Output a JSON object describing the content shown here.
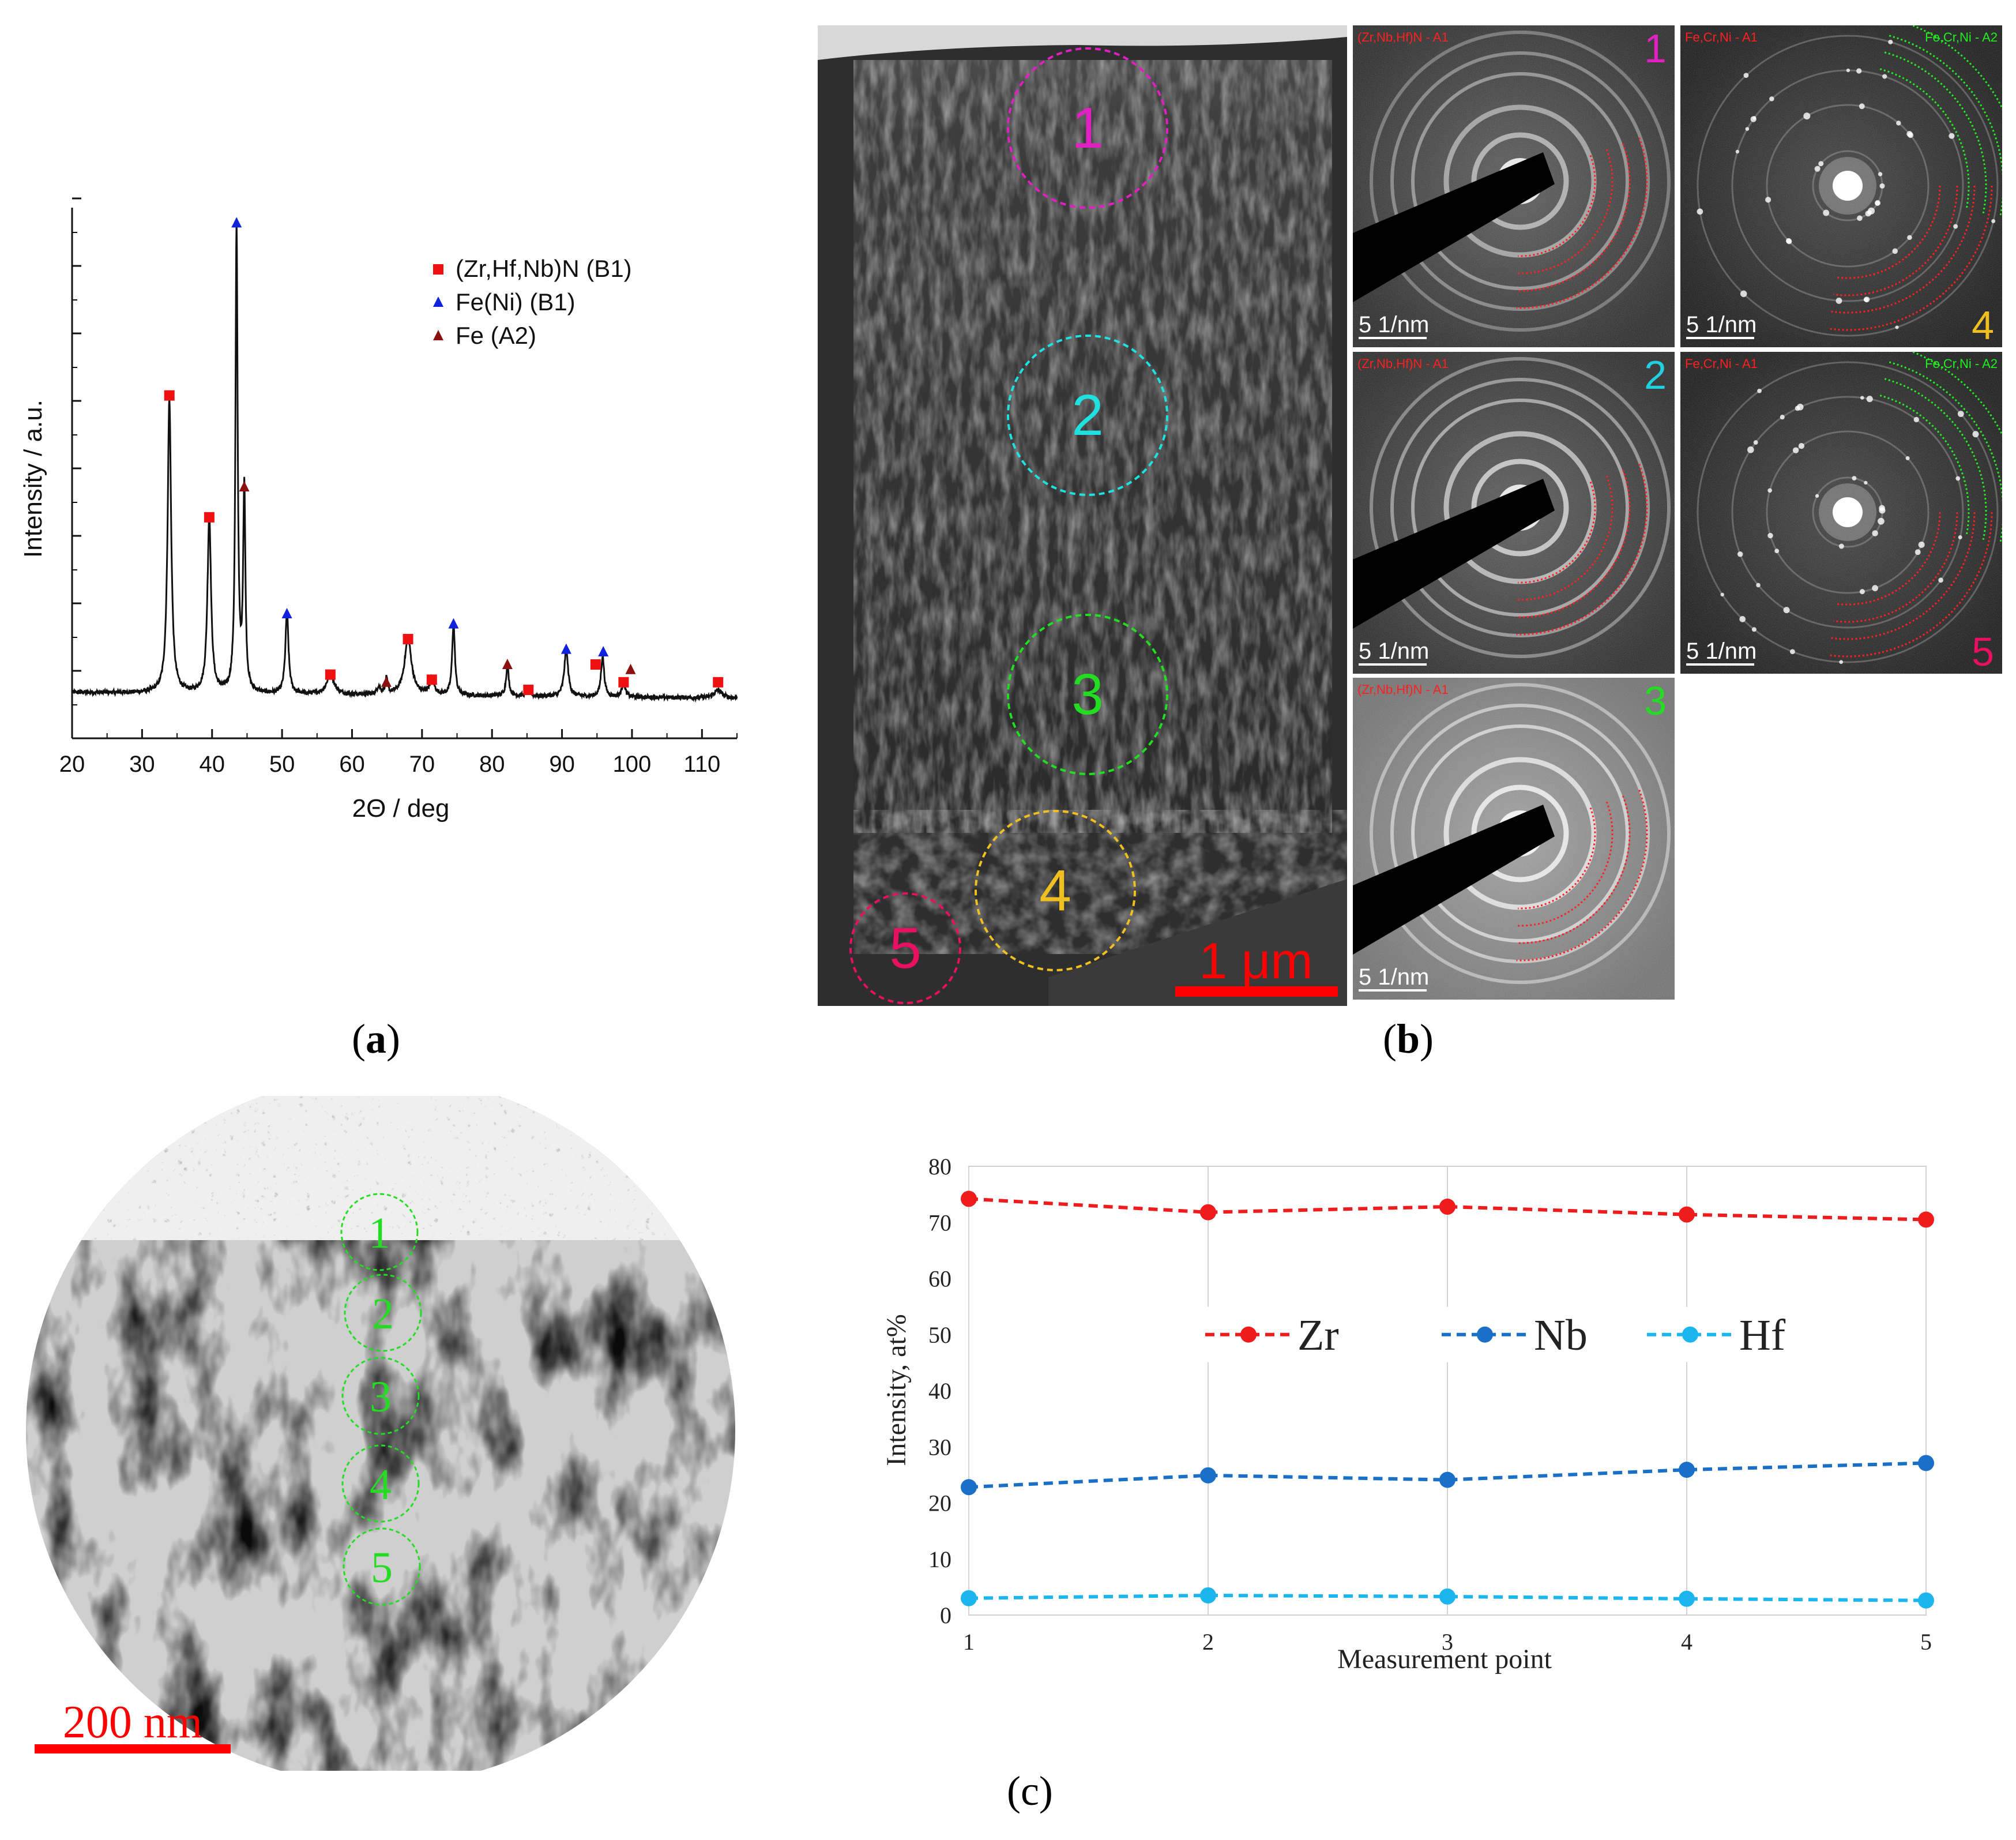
{
  "panel_a": {
    "caption": "a",
    "chart_data": {
      "type": "line",
      "xlabel": "2Θ / deg",
      "ylabel": "Intensity / a.u.",
      "xlim": [
        20,
        115
      ],
      "x_ticks": [
        "20",
        "30",
        "40",
        "50",
        "60",
        "70",
        "80",
        "90",
        "100",
        "110"
      ],
      "y_tick_labels": "none",
      "legend": [
        {
          "label": "(Zr,Hf,Nb)N (B1)",
          "marker": "square",
          "color": "#ee1111"
        },
        {
          "label": "Fe(Ni) (B1)",
          "marker": "triangle",
          "color": "#1122dd"
        },
        {
          "label": "Fe (A2)",
          "marker": "triangle",
          "color": "#8b1010"
        }
      ],
      "legend_position": "top-right",
      "peaks": [
        {
          "x": 33.9,
          "h": 0.58,
          "w": 0.45
        },
        {
          "x": 39.6,
          "h": 0.35,
          "w": 0.45
        },
        {
          "x": 43.5,
          "h": 0.92,
          "w": 0.28
        },
        {
          "x": 44.6,
          "h": 0.4,
          "w": 0.28
        },
        {
          "x": 50.7,
          "h": 0.16,
          "w": 0.4
        },
        {
          "x": 56.9,
          "h": 0.04,
          "w": 0.9
        },
        {
          "x": 63.8,
          "h": 0.015,
          "w": 0.4
        },
        {
          "x": 64.9,
          "h": 0.03,
          "w": 0.3
        },
        {
          "x": 68.0,
          "h": 0.11,
          "w": 0.9
        },
        {
          "x": 71.4,
          "h": 0.03,
          "w": 0.6
        },
        {
          "x": 74.5,
          "h": 0.14,
          "w": 0.35
        },
        {
          "x": 82.2,
          "h": 0.06,
          "w": 0.35
        },
        {
          "x": 85.2,
          "h": 0.012,
          "w": 0.5
        },
        {
          "x": 90.6,
          "h": 0.09,
          "w": 0.5
        },
        {
          "x": 95.8,
          "h": 0.08,
          "w": 0.4
        },
        {
          "x": 98.8,
          "h": 0.03,
          "w": 0.4
        },
        {
          "x": 112.3,
          "h": 0.015,
          "w": 1.0
        }
      ],
      "markers": [
        {
          "x": 33.9,
          "y": 0.63,
          "phase": "zr"
        },
        {
          "x": 39.6,
          "y": 0.39,
          "phase": "zr"
        },
        {
          "x": 43.5,
          "y": 0.97,
          "phase": "feni"
        },
        {
          "x": 44.6,
          "y": 0.45,
          "phase": "fe"
        },
        {
          "x": 50.7,
          "y": 0.2,
          "phase": "feni"
        },
        {
          "x": 56.9,
          "y": 0.08,
          "phase": "zr"
        },
        {
          "x": 64.9,
          "y": 0.065,
          "phase": "fe"
        },
        {
          "x": 68.0,
          "y": 0.15,
          "phase": "zr"
        },
        {
          "x": 71.4,
          "y": 0.07,
          "phase": "zr"
        },
        {
          "x": 74.5,
          "y": 0.18,
          "phase": "feni"
        },
        {
          "x": 82.2,
          "y": 0.1,
          "phase": "fe"
        },
        {
          "x": 85.2,
          "y": 0.05,
          "phase": "zr"
        },
        {
          "x": 90.6,
          "y": 0.13,
          "phase": "feni"
        },
        {
          "x": 94.8,
          "y": 0.1,
          "phase": "zr"
        },
        {
          "x": 95.9,
          "y": 0.125,
          "phase": "feni"
        },
        {
          "x": 98.8,
          "y": 0.065,
          "phase": "zr"
        },
        {
          "x": 99.8,
          "y": 0.09,
          "phase": "fe"
        },
        {
          "x": 112.3,
          "y": 0.065,
          "phase": "zr"
        }
      ]
    }
  },
  "panel_b": {
    "caption": "b",
    "tem_regions": [
      "1",
      "2",
      "3",
      "4",
      "5"
    ],
    "region_colors": [
      "#e020c0",
      "#20e0e0",
      "#22dd22",
      "#f0c020",
      "#e81060"
    ],
    "scale_bar": "1 μm",
    "saed_patterns": [
      {
        "number": "1",
        "phase_labels": [
          "(Zr,Nb,Hf)N - A1"
        ],
        "scale": "5 1/nm",
        "number_color": "#e020c0"
      },
      {
        "number": "2",
        "phase_labels": [
          "(Zr,Nb,Hf)N - A1"
        ],
        "scale": "5 1/nm",
        "number_color": "#20d0e0"
      },
      {
        "number": "3",
        "phase_labels": [
          "(Zr,Nb,Hf)N - A1"
        ],
        "scale": "5 1/nm",
        "number_color": "#22dd22"
      },
      {
        "number": "4",
        "phase_labels": [
          "Fe,Cr,Ni - A1",
          "Fe,Cr,Ni - A2"
        ],
        "scale": "5 1/nm",
        "number_color": "#f0c020"
      },
      {
        "number": "5",
        "phase_labels": [
          "Fe,Cr,Ni - A1",
          "Fe,Cr,Ni - A2"
        ],
        "scale": "5 1/nm",
        "number_color": "#e81060"
      }
    ]
  },
  "panel_c": {
    "caption": "(c)",
    "tem_points": [
      "1",
      "2",
      "3",
      "4",
      "5"
    ],
    "scale_bar": "200 nm",
    "chart_data": {
      "type": "line",
      "xlabel": "Measurement point",
      "ylabel": "Intensity, at%",
      "x": [
        1,
        2,
        3,
        4,
        5
      ],
      "ylim": [
        0,
        80
      ],
      "y_ticks": [
        0,
        10,
        20,
        30,
        40,
        50,
        60,
        70,
        80
      ],
      "grid": "vertical",
      "legend_position": "center",
      "series": [
        {
          "name": "Zr",
          "values": [
            74.2,
            71.8,
            72.8,
            71.4,
            70.5
          ],
          "color": "#ee1c1c"
        },
        {
          "name": "Nb",
          "values": [
            22.8,
            24.9,
            24.1,
            25.9,
            27.1
          ],
          "color": "#1a6fc6"
        },
        {
          "name": "Hf",
          "values": [
            3.0,
            3.5,
            3.3,
            2.9,
            2.6
          ],
          "color": "#1cb6ee"
        }
      ]
    }
  }
}
